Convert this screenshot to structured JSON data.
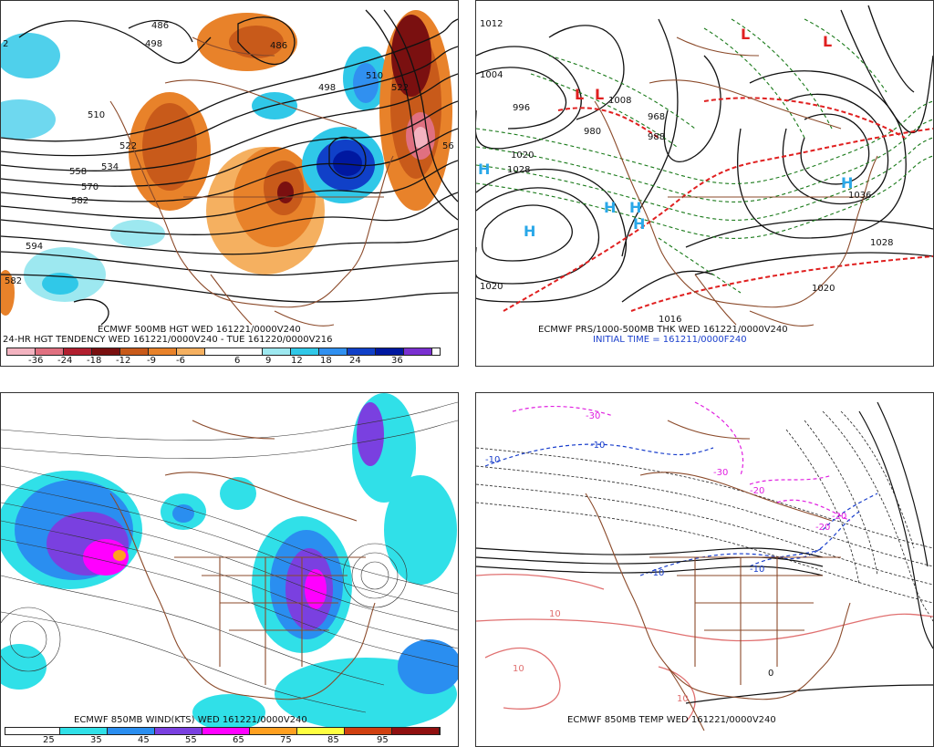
{
  "panels": [
    {
      "caption": "ECMWF 500MB HGT WED 161221/0000V240",
      "caption2": "24-HR HGT TENDENCY WED 161221/0000V240 - TUE 161220/0000V216",
      "contour_labels": [
        "486",
        "498",
        "486",
        "510",
        "522",
        "498",
        "510",
        "522",
        "534",
        "558",
        "570",
        "582",
        "594",
        "582",
        "2",
        "56"
      ],
      "colorbar": {
        "labels": [
          "-36",
          "-24",
          "-18",
          "-12",
          "-9",
          "-6",
          "6",
          "9",
          "12",
          "18",
          "24",
          "36"
        ],
        "colors": [
          "#f3b3c0",
          "#e07080",
          "#b22030",
          "#7a1010",
          "#c85a1a",
          "#e8822a",
          "#f5b060",
          "#ffffff",
          "#9de8f0",
          "#30c8e8",
          "#3090f0",
          "#1040c8",
          "#0018a0",
          "#7a30d0"
        ]
      }
    },
    {
      "caption": "ECMWF PRS/1000-500MB THK WED 161221/0000V240",
      "caption2": "INITIAL TIME = 161211/0000F240",
      "pressure_labels": [
        "1012",
        "1004",
        "996",
        "1028",
        "1020",
        "1020",
        "1036",
        "1028",
        "1020",
        "1016",
        "988",
        "980",
        "968",
        "1008"
      ],
      "centers": [
        "L",
        "L",
        "L",
        "L",
        "H",
        "H",
        "H",
        "H",
        "H",
        "H"
      ]
    },
    {
      "caption": "ECMWF 850MB WIND(KTS) WED 161221/0000V240",
      "colorbar": {
        "labels": [
          "25",
          "35",
          "45",
          "55",
          "65",
          "75",
          "85",
          "95"
        ],
        "colors": [
          "#ffffff",
          "#30e0e8",
          "#2a8ef0",
          "#7a40e0",
          "#ff00ff",
          "#ffa020",
          "#ffff40",
          "#d04010",
          "#901010"
        ]
      }
    },
    {
      "caption": "ECMWF 850MB TEMP WED 161221/0000V240",
      "temp_labels": [
        "-10",
        "-10",
        "-10",
        "-20",
        "-20",
        "-20",
        "-30",
        "-30",
        "-10",
        "10",
        "10",
        "10",
        "0"
      ]
    }
  ]
}
